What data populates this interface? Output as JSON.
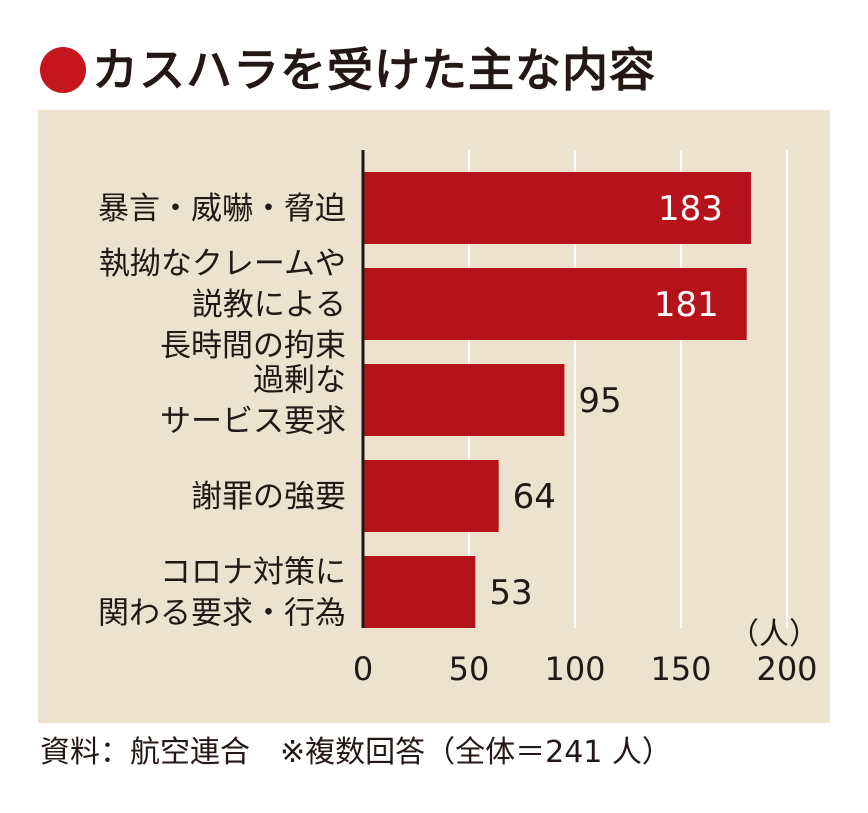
{
  "title": "カスハラを受けた主な内容",
  "footer": "資料：航空連合　※複数回答（全体＝241 人）",
  "colors": {
    "bar": "#b5121b",
    "title_bullet": "#c4161c",
    "panel": "#ede2cf",
    "axis": "#231815",
    "grid": "#ffffff"
  },
  "chart_data": {
    "type": "bar",
    "orientation": "horizontal",
    "categories": [
      [
        "暴言・威嚇・脅迫"
      ],
      [
        "執拗なクレームや",
        "説教による",
        "長時間の拘束"
      ],
      [
        "過剰な",
        "サービス要求"
      ],
      [
        "謝罪の強要"
      ],
      [
        "コロナ対策に",
        "関わる要求・行為"
      ]
    ],
    "values": [
      183,
      181,
      95,
      64,
      53
    ],
    "value_labels": [
      "183",
      "181",
      "95",
      "64",
      "53"
    ],
    "unit": "（人）",
    "xlim": [
      0,
      200
    ],
    "ticks": [
      0,
      50,
      100,
      150,
      200
    ],
    "grid": true
  }
}
